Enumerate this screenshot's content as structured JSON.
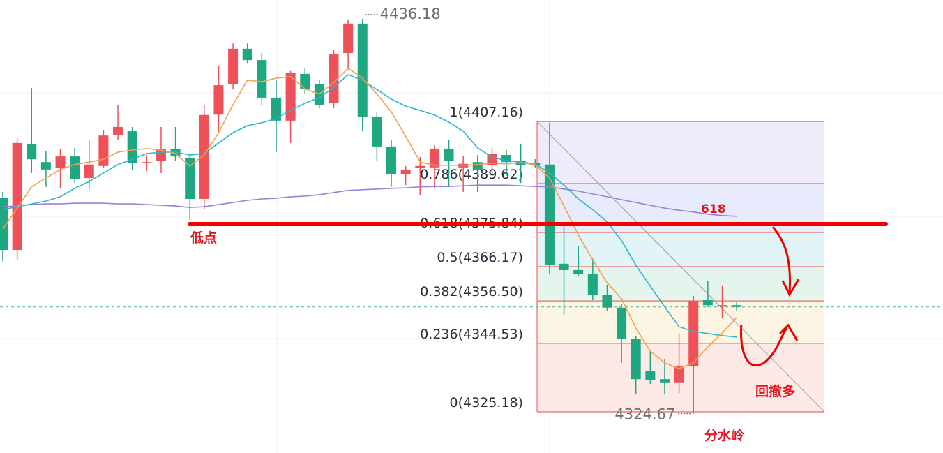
{
  "chart_data": {
    "type": "candlestick",
    "ylim": [
      4313.55,
      4441.47
    ],
    "up_color": "#ef5159",
    "down_color": "#1fa781",
    "open": [
      4385.7,
      4370.9,
      4400.7,
      4395.7,
      4394.0,
      4397.3,
      4391.2,
      4394.6,
      4403.4,
      4404.4,
      4395.5,
      4396.1,
      4399.5,
      4396.9,
      4385.3,
      4409.1,
      4417.8,
      4427.7,
      4424.5,
      4413.9,
      4407.4,
      4420.6,
      4417.8,
      4412.3,
      4426.5,
      4434.8,
      4408.4,
      4400.1,
      4392.2,
      4394.0,
      4394.2,
      4399.5,
      4394.2,
      4395.7,
      4394.8,
      4397.7,
      4396.1,
      4395.5,
      4395.0,
      4367.0,
      4365.2,
      4364.2,
      4358.1,
      4354.6,
      4345.7,
      4336.8,
      4334.4,
      4333.5,
      4338.0,
      4356.7,
      4354.9,
      4355.3
    ],
    "high": [
      4387.3,
      4402.4,
      4416.6,
      4398.9,
      4399.3,
      4399.7,
      4402.0,
      4404.8,
      4411.7,
      4405.6,
      4397.7,
      4405.6,
      4405.6,
      4397.7,
      4411.9,
      4422.9,
      4429.2,
      4429.2,
      4426.5,
      4418.8,
      4421.4,
      4422.2,
      4418.8,
      4427.3,
      4436.0,
      4436.18,
      4409.9,
      4402.0,
      4394.6,
      4397.1,
      4400.5,
      4402.0,
      4397.5,
      4397.7,
      4399.7,
      4399.1,
      4400.9,
      4396.5,
      4406.8,
      4377.8,
      4372.1,
      4368.5,
      4361.1,
      4355.7,
      4346.5,
      4342.5,
      4340.0,
      4347.3,
      4357.9,
      4362.2,
      4360.7,
      4356.1
    ],
    "low": [
      4367.6,
      4368.1,
      4392.6,
      4388.7,
      4388.3,
      4389.8,
      4387.9,
      4394.2,
      4402.0,
      4393.6,
      4393.2,
      4392.6,
      4396.1,
      4379.4,
      4382.3,
      4404.0,
      4416.2,
      4423.7,
      4411.9,
      4398.5,
      4401.1,
      4414.9,
      4410.9,
      4410.9,
      4421.8,
      4404.6,
      4396.1,
      4388.7,
      4389.2,
      4386.3,
      4388.3,
      4388.7,
      4387.3,
      4387.3,
      4392.2,
      4391.8,
      4389.8,
      4394.2,
      4364.0,
      4352.4,
      4363.6,
      4356.7,
      4353.8,
      4339.0,
      4330.1,
      4333.1,
      4330.1,
      4330.5,
      4324.67,
      4354.8,
      4351.8,
      4353.8
    ],
    "close": [
      4370.9,
      4401.1,
      4396.5,
      4393.6,
      4397.3,
      4391.0,
      4395.0,
      4403.2,
      4405.6,
      4395.5,
      4395.7,
      4399.5,
      4397.3,
      4385.3,
      4409.0,
      4417.4,
      4427.7,
      4424.5,
      4413.9,
      4407.4,
      4420.8,
      4416.4,
      4411.9,
      4426.1,
      4434.8,
      4408.4,
      4400.1,
      4392.2,
      4393.6,
      4394.6,
      4399.5,
      4396.1,
      4395.2,
      4393.4,
      4398.1,
      4395.7,
      4394.8,
      4394.8,
      4366.6,
      4365.2,
      4364.0,
      4358.1,
      4354.6,
      4345.7,
      4334.4,
      4334.1,
      4333.5,
      4338.0,
      4356.5,
      4355.3,
      4355.3,
      4354.8
    ],
    "moving_averages": [
      {
        "color": "#9b80d8",
        "values": [
          4383.1,
          4383.3,
          4383.7,
          4383.9,
          4383.9,
          4384.1,
          4384.1,
          4384.1,
          4383.9,
          4383.9,
          4383.7,
          4383.5,
          4383.3,
          4382.9,
          4383.1,
          4383.7,
          4384.3,
          4384.9,
          4385.3,
          4385.5,
          4385.9,
          4386.1,
          4386.5,
          4387.1,
          4387.7,
          4387.9,
          4388.1,
          4388.3,
          4388.4,
          4388.7,
          4388.8,
          4388.8,
          4389.0,
          4389.2,
          4389.2,
          4389.2,
          4389.0,
          4388.8,
          4388.7,
          4388.1,
          4387.5,
          4386.7,
          4385.9,
          4385.1,
          4384.3,
          4383.5,
          4382.7,
          4382.1,
          4381.6,
          4381.0,
          4380.6,
          4380.4
        ]
      },
      {
        "color": "#2bb5cc",
        "values": [
          4382.3,
          4383.1,
          4383.9,
          4384.7,
          4385.9,
          4388.3,
          4390.2,
          4392.6,
          4395.0,
          4396.5,
          4398.1,
          4398.5,
          4398.5,
          4397.7,
          4398.1,
          4401.1,
          4404.0,
          4406.0,
          4406.8,
          4408.0,
          4410.3,
          4412.3,
          4413.9,
          4416.8,
          4420.4,
          4418.8,
          4416.2,
          4413.5,
          4411.5,
          4410.3,
          4409.0,
          4407.0,
          4404.4,
          4399.7,
          4397.1,
          4396.1,
          4395.7,
          4395.2,
          4392.6,
          4389.2,
          4385.3,
          4382.3,
          4378.8,
          4373.5,
          4366.6,
          4360.7,
          4354.8,
          4349.2,
          4347.9,
          4347.3,
          4346.7,
          4346.3
        ]
      },
      {
        "color": "#f5a04a",
        "values": [
          4376.8,
          4382.7,
          4388.7,
          4391.2,
          4393.6,
          4395.0,
          4395.7,
          4396.5,
          4398.5,
          4399.1,
          4399.5,
          4399.1,
          4398.1,
          4394.6,
          4397.7,
          4404.0,
          4411.9,
          4418.8,
          4418.4,
          4419.4,
          4419.8,
          4416.4,
          4414.9,
          4418.2,
          4422.2,
          4419.4,
          4414.9,
          4409.9,
          4403.0,
          4395.7,
          4394.8,
          4394.8,
          4394.8,
          4395.0,
          4395.4,
          4395.2,
          4395.5,
          4395.0,
          4391.2,
          4383.3,
          4375.1,
          4368.1,
          4361.6,
          4357.1,
          4348.8,
          4342.3,
          4339.0,
          4337.4,
          4339.0,
          4343.5,
          4347.5,
          4351.8
        ]
      }
    ],
    "fib_levels": [
      {
        "value": 4407.16,
        "label": "1(4407.16)"
      },
      {
        "value": 4389.62,
        "label": "0.786(4389.62)"
      },
      {
        "value": 4375.84,
        "label": "0.618(4375.84)"
      },
      {
        "value": 4366.17,
        "label": "0.5(4366.17)"
      },
      {
        "value": 4356.5,
        "label": "0.382(4356.50)"
      },
      {
        "value": 4344.53,
        "label": "0.236(4344.53)"
      },
      {
        "value": 4325.18,
        "label": "0(4325.18)"
      }
    ],
    "annotations": [
      "低点",
      "618",
      "回撤多",
      "分水岭"
    ]
  }
}
